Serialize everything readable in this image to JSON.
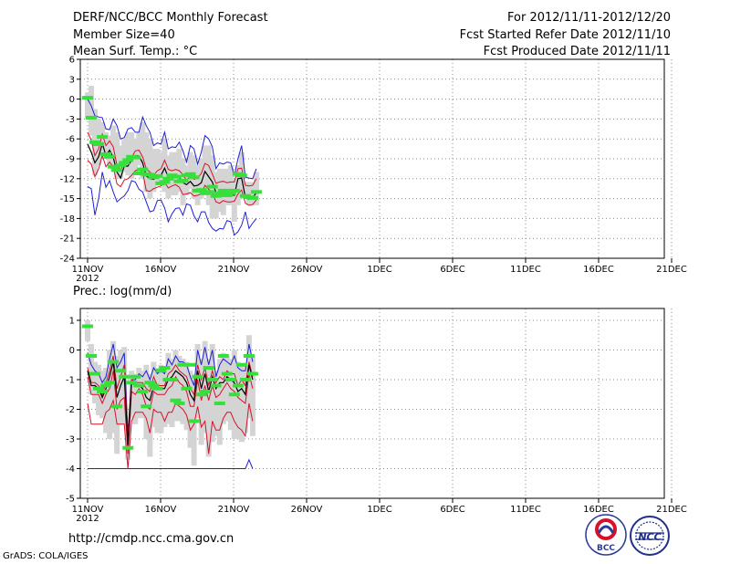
{
  "header": {
    "title": "DERF/NCC/BCC Monthly Forecast",
    "member_size": "Member Size=40",
    "variable": "Mean Surf. Temp.: °C",
    "period": "For 2012/11/11-2012/12/20",
    "started": "Fcst Started Refer Date 2012/11/10",
    "produced": "Fcst Produced Date 2012/11/11"
  },
  "footer": {
    "url": "http://cmdp.ncc.cma.gov.cn",
    "grads": "GrADS: COLA/IGES",
    "logo_bcc": "BCC",
    "logo_ncc": "NCC"
  },
  "colors": {
    "envelope": "#1f1fd6",
    "spread": "#d8102a",
    "mean": "#000000",
    "bar": "#d4d4d4",
    "median": "#35e03a",
    "grid": "#8a8a8a"
  },
  "chart_data": [
    {
      "type": "box",
      "title": "Mean Surf. Temp.: °C",
      "x_ticks": [
        "11NOV",
        "16NOV",
        "21NOV",
        "26NOV",
        "1DEC",
        "6DEC",
        "11DEC",
        "16DEC",
        "21DEC"
      ],
      "x_year": "2012",
      "ylim": [
        -24,
        6
      ],
      "y_ticks": [
        6,
        3,
        0,
        -3,
        -6,
        -9,
        -12,
        -15,
        -18,
        -21,
        -24
      ],
      "max": [
        0,
        -1,
        -2.5,
        -2.7,
        -2.8,
        -4.5,
        -4.6,
        -3,
        -4,
        -6,
        -5.8,
        -4.5,
        -4.3,
        -5,
        -5,
        -2.7,
        -4,
        -5,
        -7,
        -6.6,
        -6.8,
        -5,
        -7.5,
        -7.2,
        -7.3,
        -6.5,
        -7.8,
        -9.5,
        -7,
        -7.5,
        -9.8,
        -8,
        -5.5,
        -6,
        -7.2,
        -10.5,
        -9.6,
        -9.8,
        -9.5,
        -9.6,
        -11.5,
        -9,
        -7,
        -11.8,
        -11.9,
        -12,
        -10.5
      ],
      "upper": [
        -5,
        -6.2,
        -8.5,
        -7.5,
        -5.3,
        -7,
        -6.3,
        -7.2,
        -10,
        -10.7,
        -9.5,
        -9.5,
        -8.8,
        -7.8,
        -7.7,
        -8.7,
        -10.5,
        -11,
        -11.5,
        -10.8,
        -10.5,
        -9.2,
        -10.6,
        -10.8,
        -10.6,
        -10.8,
        -11.4,
        -12.3,
        -11.5,
        -12.1,
        -11.9,
        -11.2,
        -9.7,
        -10,
        -11.3,
        -12.7,
        -12.5,
        -12.4,
        -12.6,
        -12.5,
        -12.5,
        -10.5,
        -10.4,
        -13,
        -13.1,
        -13,
        -12
      ],
      "mean": [
        -6.8,
        -8,
        -9.6,
        -8.7,
        -6.7,
        -8.5,
        -7.7,
        -8.8,
        -11,
        -11.9,
        -10.1,
        -10.1,
        -9.2,
        -8.5,
        -8.6,
        -9.6,
        -11.6,
        -12,
        -12.1,
        -11.7,
        -11.5,
        -10.4,
        -11.8,
        -11.6,
        -11.5,
        -11.8,
        -12.6,
        -12.9,
        -12.4,
        -13.1,
        -13,
        -12.6,
        -10.9,
        -11.7,
        -12.5,
        -14.1,
        -14.2,
        -13.7,
        -14.3,
        -14.4,
        -14.5,
        -12,
        -11.9,
        -14.8,
        -15.1,
        -14.9,
        -14.1
      ],
      "lower": [
        -9.2,
        -9.8,
        -11.7,
        -10.5,
        -8.5,
        -10.2,
        -9.5,
        -10.2,
        -12.8,
        -13.2,
        -12.2,
        -12,
        -11.5,
        -10.8,
        -10.6,
        -11,
        -13.8,
        -13.9,
        -13.5,
        -13.3,
        -13.1,
        -12.5,
        -13.4,
        -13.1,
        -12.9,
        -13.3,
        -14.4,
        -14.3,
        -14.1,
        -14.6,
        -14.5,
        -14.3,
        -13,
        -13.6,
        -14.1,
        -15.5,
        -15.7,
        -15.3,
        -15.5,
        -15.5,
        -15.4,
        -14.3,
        -13.7,
        -15.7,
        -16,
        -15.9,
        -15.2
      ],
      "min": [
        -13.2,
        -13.5,
        -17.5,
        -15,
        -11,
        -13.3,
        -12.3,
        -14,
        -15.5,
        -15,
        -14.6,
        -13.8,
        -12.3,
        -12.5,
        -13.6,
        -14,
        -15.5,
        -17,
        -16.8,
        -15.3,
        -15.2,
        -16.4,
        -18.5,
        -17.3,
        -16.5,
        -16.4,
        -17.5,
        -15.8,
        -16,
        -17.6,
        -18.5,
        -17,
        -17,
        -18.6,
        -19.5,
        -19.9,
        -19.5,
        -19.6,
        -18.3,
        -18.5,
        -20.5,
        -20,
        -19,
        -17,
        -19.5,
        -18.7,
        -18
      ],
      "q_high": [
        1,
        2,
        -1.5,
        -3,
        -3.5,
        -5,
        -5.5,
        -4,
        -5,
        -7,
        -6,
        -5,
        -5,
        -6,
        -5,
        -3.5,
        -5,
        -6,
        -7.5,
        -7.5,
        -8,
        -6,
        -8.5,
        -8,
        -8,
        -7.5,
        -9,
        -10,
        -8,
        -8.5,
        -10,
        -9,
        -7,
        -7,
        -8.5,
        -11,
        -10.5,
        -10.5,
        -10.5,
        -10,
        -12,
        -10,
        -8,
        -12.5,
        -12.5,
        -12.5,
        -11
      ],
      "q_low": [
        -3,
        -5.5,
        -11.5,
        -10,
        -8,
        -9,
        -10,
        -11,
        -12,
        -12,
        -11,
        -11.5,
        -12,
        -11,
        -10,
        -12,
        -14,
        -15,
        -14,
        -13,
        -13,
        -14,
        -15,
        -14.5,
        -14.5,
        -14,
        -16,
        -14.5,
        -13.5,
        -15,
        -16,
        -15,
        -14,
        -16,
        -18,
        -18,
        -17,
        -17.5,
        -16,
        -16,
        -18.5,
        -16,
        -15,
        -15,
        -16,
        -16,
        -16
      ],
      "median": [
        0.2,
        -2.8,
        -6.5,
        -6.8,
        -5.7,
        -8.3,
        -8.7,
        -10.2,
        -10.7,
        -10,
        -9.6,
        -9.2,
        -8.7,
        -8.8,
        -11.2,
        -10.6,
        -11.3,
        -11.4,
        -11.8,
        -11.6,
        -12.7,
        -12.5,
        -12,
        -11.5,
        -11.7,
        -12.4,
        -12.3,
        -11.5,
        -11.3,
        -11.8,
        -13.8,
        -13.7,
        -14.2,
        -14,
        -13.2,
        -14.6,
        -14.2,
        -13.8,
        -14.5,
        -14.2,
        -13.8,
        -11.3,
        -11.5,
        -14.6,
        -14.8,
        -14.9,
        -14
      ]
    },
    {
      "type": "box",
      "title": "Prec.: log(mm/d)",
      "x_ticks": [
        "11NOV",
        "16NOV",
        "21NOV",
        "26NOV",
        "1DEC",
        "6DEC",
        "11DEC",
        "16DEC",
        "21DEC"
      ],
      "x_year": "2012",
      "ylim": [
        -5,
        1.4
      ],
      "y_ticks": [
        1,
        0,
        -1,
        -2,
        -3,
        -4,
        -5
      ],
      "max": [
        -0.1,
        -0.5,
        -0.7,
        -0.8,
        -1.1,
        -0.9,
        -0.3,
        0.2,
        -0.6,
        -0.4,
        -0.1,
        -2.8,
        -1,
        -1,
        -0.8,
        -0.9,
        -0.7,
        -1,
        -0.6,
        -0.8,
        -0.7,
        -0.8,
        -0.3,
        -0.5,
        -0.2,
        -0.4,
        -0.4,
        -0.5,
        -0.9,
        -1.2,
        0,
        -0.5,
        0.1,
        -0.5,
        0,
        -0.9,
        -0.5,
        -0.3,
        -0.4,
        -0.5,
        -0.2,
        -0.6,
        -0.7,
        -0.7,
        0.2,
        -0.4
      ],
      "upper": [
        -0.6,
        -1.1,
        -1.1,
        -1.2,
        -1.5,
        -1.1,
        -0.7,
        -0.2,
        -1.3,
        -0.9,
        -0.5,
        -2.9,
        -1,
        -1.1,
        -1.1,
        -1.1,
        -1.3,
        -1.4,
        -0.9,
        -1.2,
        -1.2,
        -1.2,
        -0.8,
        -0.7,
        -0.5,
        -0.7,
        -0.8,
        -0.9,
        -1.3,
        -1.5,
        -0.5,
        -1,
        -0.6,
        -1.2,
        -0.7,
        -1.1,
        -0.9,
        -1,
        -0.7,
        -0.8,
        -0.8,
        -1.2,
        -1,
        -1.2,
        -0.4,
        -0.9
      ],
      "mean": [
        -0.7,
        -1.2,
        -1.2,
        -1.3,
        -1.6,
        -1.3,
        -0.9,
        -0.4,
        -1.6,
        -1.2,
        -0.9,
        -3.2,
        -1.1,
        -1.2,
        -1.2,
        -1.3,
        -1.6,
        -1.7,
        -1.2,
        -1.3,
        -1.3,
        -1.3,
        -1,
        -0.9,
        -0.7,
        -0.8,
        -0.9,
        -1.1,
        -1.5,
        -1.7,
        -0.7,
        -1.3,
        -0.8,
        -1.4,
        -0.9,
        -1.3,
        -1.1,
        -1.1,
        -0.9,
        -1,
        -1.1,
        -1.4,
        -1.3,
        -1.5,
        -0.5,
        -1
      ],
      "lower": [
        -0.9,
        -1.5,
        -1.5,
        -1.5,
        -1.8,
        -1.5,
        -1.3,
        -0.7,
        -2,
        -1.7,
        -1.6,
        -3.5,
        -1.4,
        -1.5,
        -1.3,
        -1.5,
        -1.9,
        -2,
        -1.4,
        -1.5,
        -1.5,
        -1.5,
        -1.3,
        -1.2,
        -0.9,
        -1.1,
        -1.2,
        -1.4,
        -1.9,
        -1.9,
        -1,
        -1.7,
        -1.2,
        -1.7,
        -1.2,
        -1.6,
        -1.5,
        -1.3,
        -1.1,
        -1.3,
        -1.4,
        -1.6,
        -1.7,
        -1.8,
        -0.8,
        -1.3
      ],
      "min": [
        -1.8,
        -2.5,
        -2.5,
        -2.5,
        -2.5,
        -2.1,
        -2,
        -1.7,
        -2.5,
        -2.5,
        -2.5,
        -4,
        -2.4,
        -2.1,
        -2.1,
        -2.1,
        -2.3,
        -2.8,
        -2,
        -2.1,
        -2.1,
        -2.4,
        -2.1,
        -2.1,
        -1.8,
        -1.9,
        -2,
        -2.2,
        -2.7,
        -2.5,
        -1.9,
        -2.6,
        -2.4,
        -3.5,
        -2.4,
        -2.7,
        -2.7,
        -2.3,
        -2.1,
        -2.1,
        -2.4,
        -2.6,
        -2.7,
        -2.9,
        -1.8,
        -2.4
      ],
      "q_high": [
        1,
        0.2,
        -0.4,
        -0.5,
        -0.7,
        -0.6,
        0,
        0.3,
        -0.2,
        0,
        0.1,
        -2.5,
        -0.7,
        -0.8,
        -0.6,
        -0.7,
        -0.5,
        -0.8,
        -0.4,
        -0.6,
        -0.5,
        -0.6,
        -0.1,
        -0.3,
        0,
        -0.2,
        -0.3,
        -0.4,
        -0.7,
        -1,
        0.2,
        -0.3,
        0.3,
        -0.3,
        0.2,
        -0.7,
        -0.3,
        -0.1,
        -0.2,
        -0.3,
        0,
        -0.4,
        -0.5,
        -0.5,
        0.5,
        -0.2
      ],
      "q_low": [
        0.3,
        -1.5,
        -1.8,
        -2.2,
        -2.3,
        -2.8,
        -3,
        -2.8,
        -3.5,
        -2.5,
        -2.5,
        -3.7,
        -2.3,
        -2.5,
        -2.3,
        -2.3,
        -3,
        -3.6,
        -2.6,
        -2.8,
        -2.8,
        -2.6,
        -2.5,
        -2.6,
        -2.4,
        -2.4,
        -2.5,
        -2.7,
        -3.3,
        -3.9,
        -2.3,
        -3.2,
        -2.8,
        -3.6,
        -3.1,
        -2.9,
        -3.2,
        -2.5,
        -2.4,
        -2.7,
        -3,
        -3,
        -3.1,
        -2.8,
        -2.3,
        -2.9
      ],
      "median": [
        0.8,
        -0.2,
        -0.8,
        -1.3,
        -1.4,
        -1.2,
        -1.1,
        -0.4,
        -1.9,
        -0.7,
        -0.9,
        -3.3,
        -1.1,
        -0.9,
        -1.2,
        -1.4,
        -1.9,
        -1.1,
        -1.2,
        -1.3,
        -0.7,
        -0.6,
        -1,
        -1,
        -1.7,
        -1.8,
        -0.5,
        -1.3,
        -0.5,
        -2.4,
        -0.9,
        -1.5,
        -1.4,
        -0.6,
        -1,
        -1.2,
        -1.8,
        -0.2,
        -0.8,
        -1,
        -1.5,
        -1.2,
        -0.5,
        -1,
        -0.2,
        -0.8
      ],
      "floor": [
        -4,
        -4,
        -4,
        -4,
        -4,
        -4,
        -4,
        -4,
        -4,
        -4,
        -4,
        -4,
        -4,
        -4,
        -4,
        -4,
        -4,
        -4,
        -4,
        -4,
        -4,
        -4,
        -4,
        -4,
        -4,
        -4,
        -4,
        -4,
        -4,
        -4,
        -4,
        -4,
        -4,
        -4,
        -4,
        -4,
        -4,
        -4,
        -4,
        -4,
        -4,
        -4,
        -4,
        -4,
        -3.7,
        -4
      ]
    }
  ]
}
